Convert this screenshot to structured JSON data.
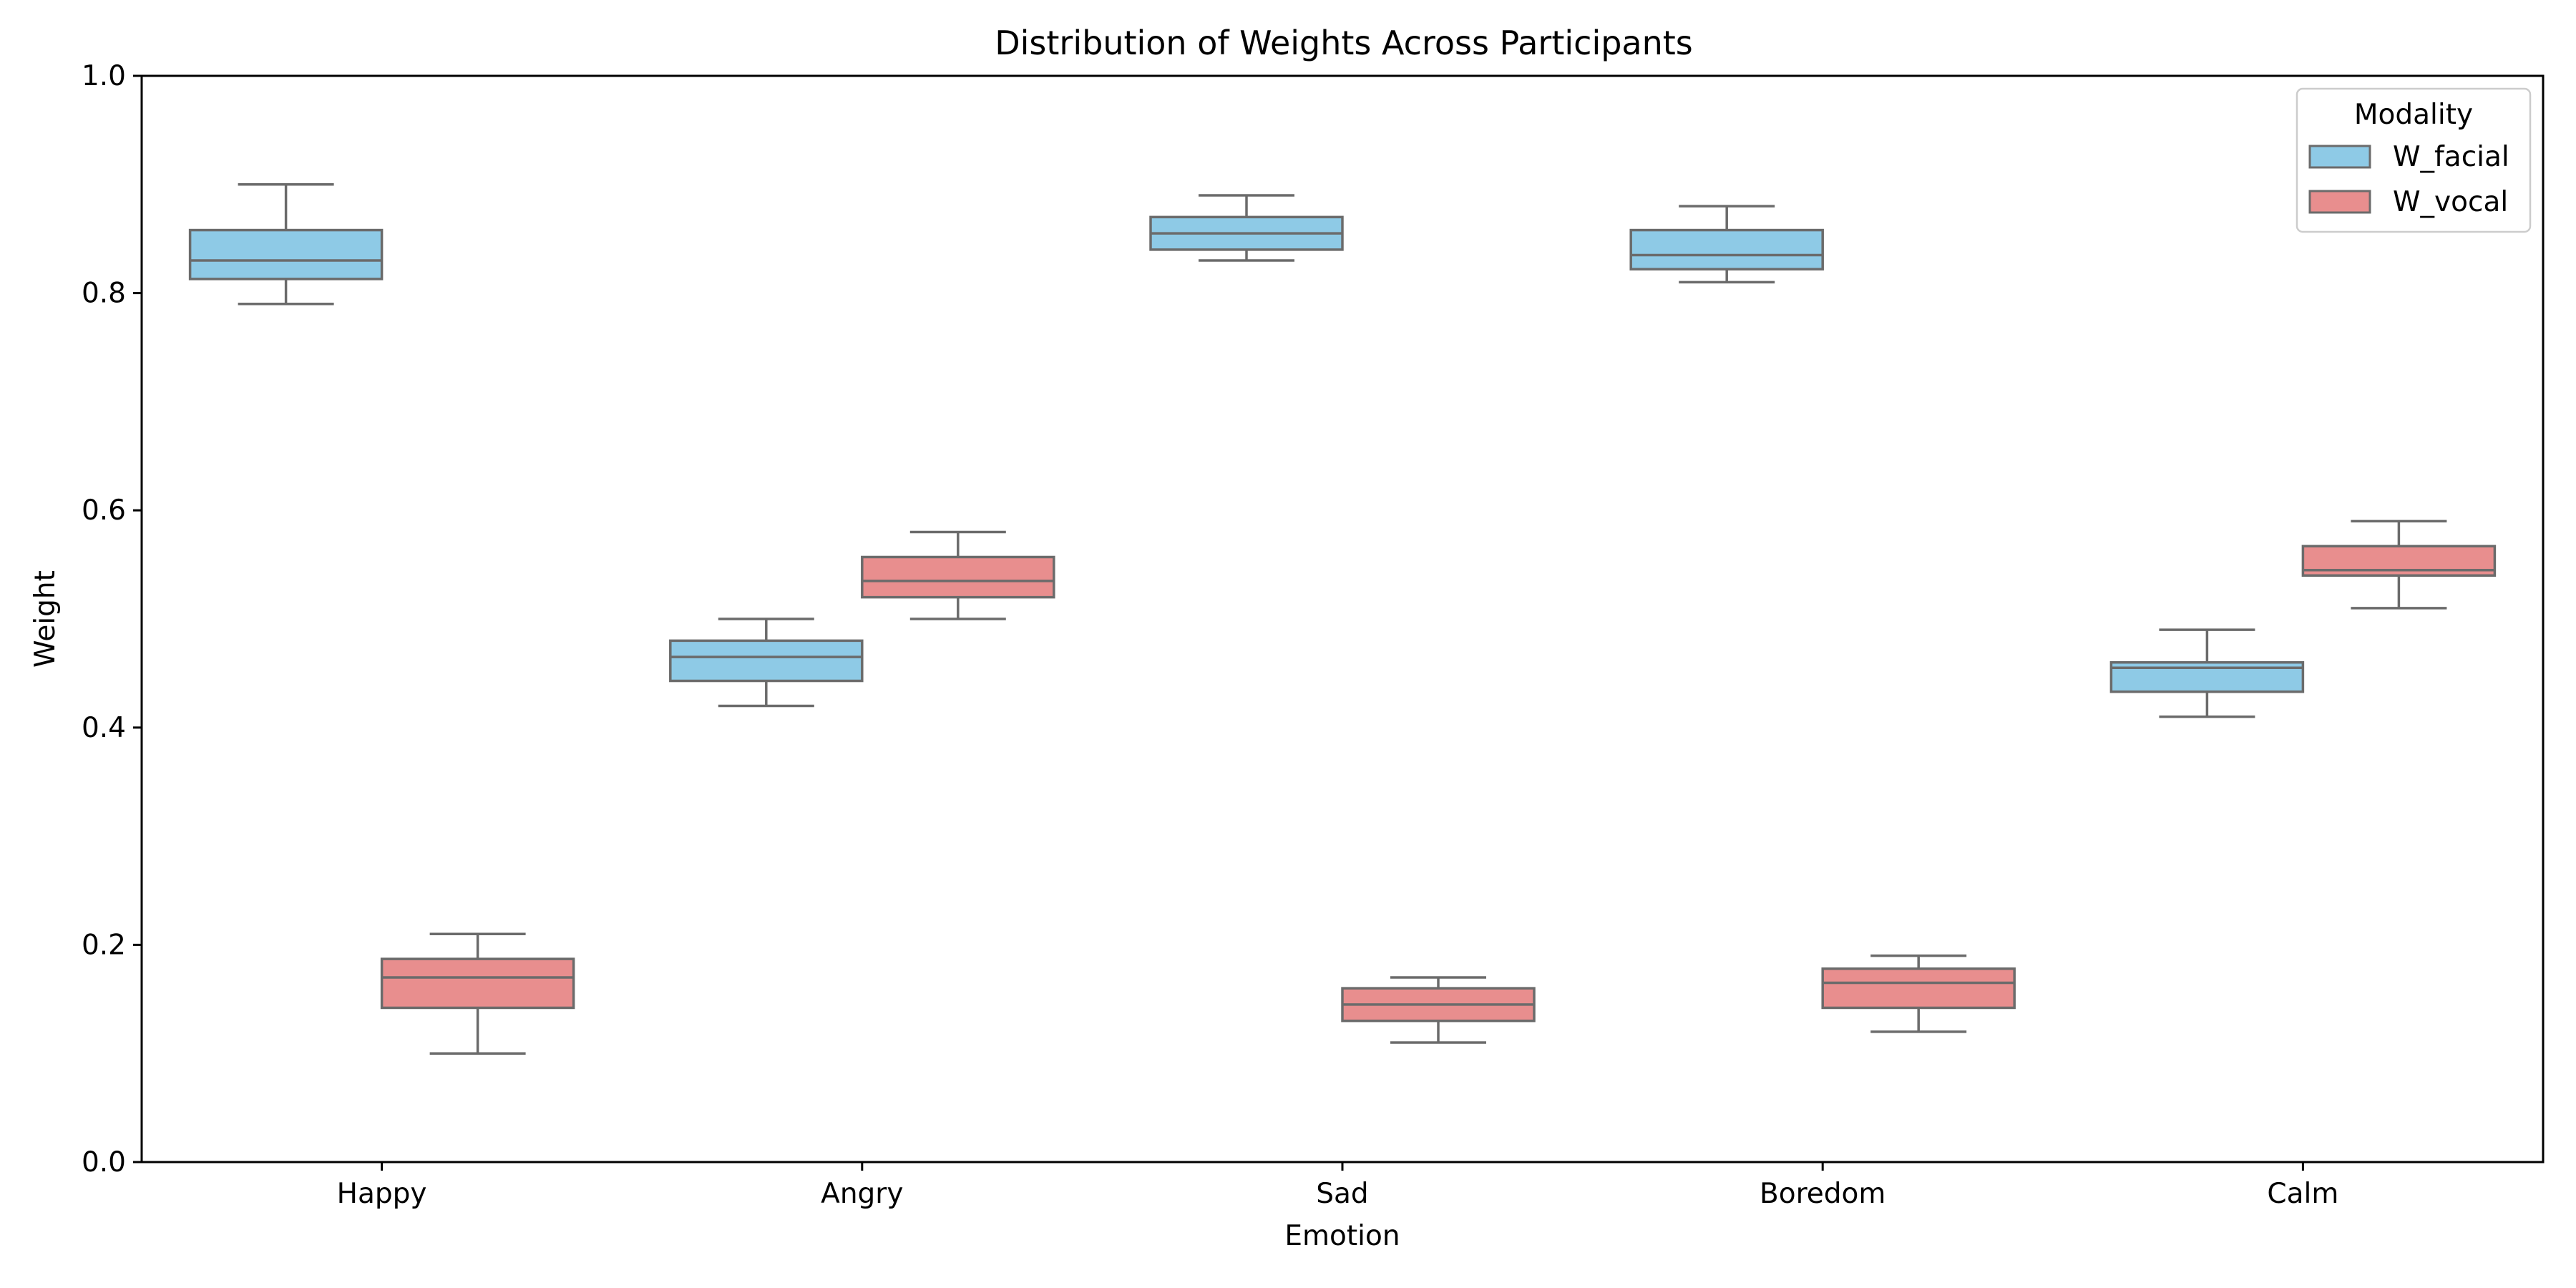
{
  "chart_data": {
    "type": "box",
    "title": "Distribution of Weights Across Participants",
    "xlabel": "Emotion",
    "ylabel": "Weight",
    "ylim": [
      0.0,
      1.0
    ],
    "yticks": [
      "0.0",
      "0.2",
      "0.4",
      "0.6",
      "0.8",
      "1.0"
    ],
    "categories": [
      "Happy",
      "Angry",
      "Sad",
      "Boredom",
      "Calm"
    ],
    "grid": false,
    "legend": {
      "title": "Modality",
      "placement": "top-right"
    },
    "series": [
      {
        "name": "W_facial",
        "color": "#8ecae6",
        "boxes": [
          {
            "whisker_low": 0.79,
            "q1": 0.813,
            "median": 0.83,
            "q3": 0.858,
            "whisker_high": 0.9
          },
          {
            "whisker_low": 0.42,
            "q1": 0.443,
            "median": 0.465,
            "q3": 0.48,
            "whisker_high": 0.5
          },
          {
            "whisker_low": 0.83,
            "q1": 0.84,
            "median": 0.855,
            "q3": 0.87,
            "whisker_high": 0.89
          },
          {
            "whisker_low": 0.81,
            "q1": 0.822,
            "median": 0.835,
            "q3": 0.858,
            "whisker_high": 0.88
          },
          {
            "whisker_low": 0.41,
            "q1": 0.433,
            "median": 0.455,
            "q3": 0.46,
            "whisker_high": 0.49
          }
        ]
      },
      {
        "name": "W_vocal",
        "color": "#e88e8e",
        "boxes": [
          {
            "whisker_low": 0.1,
            "q1": 0.142,
            "median": 0.17,
            "q3": 0.187,
            "whisker_high": 0.21
          },
          {
            "whisker_low": 0.5,
            "q1": 0.52,
            "median": 0.535,
            "q3": 0.557,
            "whisker_high": 0.58
          },
          {
            "whisker_low": 0.11,
            "q1": 0.13,
            "median": 0.145,
            "q3": 0.16,
            "whisker_high": 0.17
          },
          {
            "whisker_low": 0.12,
            "q1": 0.142,
            "median": 0.165,
            "q3": 0.178,
            "whisker_high": 0.19
          },
          {
            "whisker_low": 0.51,
            "q1": 0.54,
            "median": 0.545,
            "q3": 0.567,
            "whisker_high": 0.59
          }
        ]
      }
    ]
  }
}
